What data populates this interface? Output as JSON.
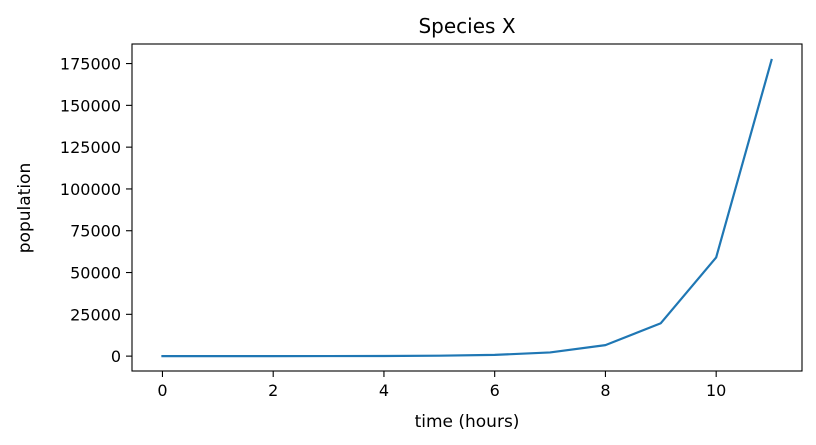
{
  "chart_data": {
    "type": "line",
    "title": "Species X",
    "xlabel": "time (hours)",
    "ylabel": "population",
    "xlim": [
      -0.55,
      11.55
    ],
    "ylim": [
      -8900,
      186700
    ],
    "xticks": [
      0,
      2,
      4,
      6,
      8,
      10
    ],
    "yticks": [
      0,
      25000,
      50000,
      75000,
      100000,
      125000,
      150000,
      175000
    ],
    "xtick_labels": [
      "0",
      "2",
      "4",
      "6",
      "8",
      "10"
    ],
    "ytick_labels": [
      "0",
      "25000",
      "50000",
      "75000",
      "100000",
      "125000",
      "150000",
      "175000"
    ],
    "grid": false,
    "line_color": "#1f77b4",
    "series": [
      {
        "x": [
          0,
          1,
          2,
          3,
          4,
          5,
          6,
          7,
          8,
          9,
          10,
          11
        ],
        "values": [
          1,
          3,
          9,
          27,
          81,
          243,
          729,
          2187,
          6561,
          19683,
          59049,
          177147
        ]
      }
    ]
  }
}
